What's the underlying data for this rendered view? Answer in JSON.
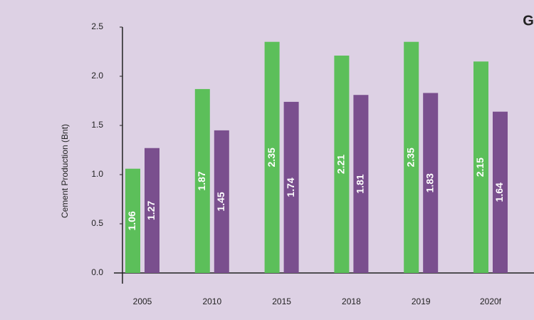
{
  "chart_data": {
    "type": "bar",
    "annotation": "G",
    "y_label": "Cement Production (Bnt)",
    "categories": [
      "2005",
      "2010",
      "2015",
      "2018",
      "2019",
      "2020f"
    ],
    "series": [
      {
        "color": "#5cbf5a",
        "values": [
          1.06,
          1.87,
          2.35,
          2.21,
          2.35,
          2.15
        ]
      },
      {
        "color": "#7a4f8e",
        "values": [
          1.27,
          1.45,
          1.74,
          1.81,
          1.83,
          1.64
        ]
      }
    ],
    "ylim": [
      0,
      2.5
    ],
    "yticks": [
      {
        "value": 0,
        "label": "0.0"
      },
      0.5,
      {
        "value": 1,
        "label": "1.0"
      },
      1.5,
      {
        "value": 2,
        "label": "2.0"
      },
      2.5
    ]
  }
}
